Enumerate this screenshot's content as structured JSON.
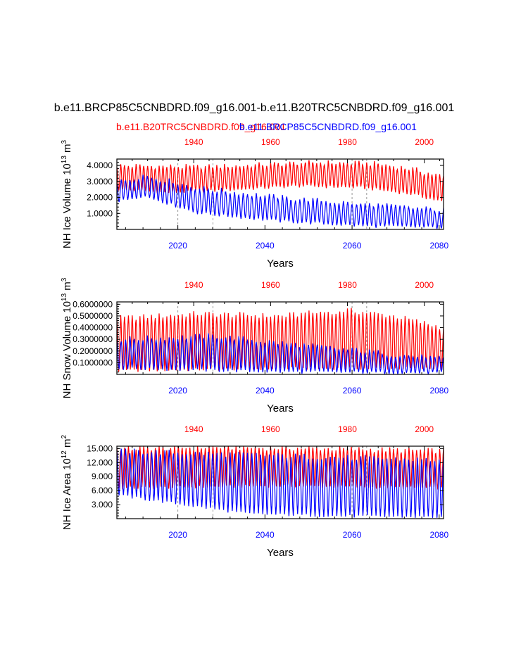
{
  "figure": {
    "title": "b.e11.BRCP85C5CNBDRD.f09_g16.001-b.e11.B20TRC5CNBDRD.f09_g16.001",
    "legend": [
      {
        "name": "b.e11.B20TRC5CNBDRD.f09_g16.001",
        "color": "#ff0000"
      },
      {
        "name": "b.e11.BRCP85C5CNBDRD.f09_g16.001",
        "color": "#0000ff"
      }
    ]
  },
  "chart_data": [
    {
      "type": "line",
      "xlabel": "Years",
      "ylabel_main": "NH Ice Volume 10",
      "ylabel_exp": "13",
      "ylabel_unit": "m",
      "ylabel_unit_exp": "3",
      "yticks": [
        "1.0000",
        "2.0000",
        "3.0000",
        "4.0000"
      ],
      "ytick_values": [
        1,
        2,
        3,
        4
      ],
      "ylim": [
        0,
        4.4
      ],
      "bottom_axis": {
        "label_years": [
          "2020",
          "2040",
          "2060",
          "2080"
        ],
        "range": [
          2006,
          2081
        ]
      },
      "top_axis": {
        "label_years": [
          "1940",
          "1960",
          "1980",
          "2000"
        ],
        "range": [
          1920,
          2005
        ]
      },
      "series": [
        {
          "name": "b.e11.B20TRC5CNBDRD.f09_g16.001",
          "color": "#ff0000",
          "cycles": 85,
          "max": [
            [
              0,
              4.0
            ],
            [
              0.25,
              3.9
            ],
            [
              0.4,
              4.0
            ],
            [
              0.6,
              4.2
            ],
            [
              0.8,
              4.1
            ],
            [
              0.9,
              3.8
            ],
            [
              1,
              3.3
            ]
          ],
          "min": [
            [
              0,
              2.5
            ],
            [
              0.15,
              2.3
            ],
            [
              0.3,
              2.4
            ],
            [
              0.55,
              2.7
            ],
            [
              0.75,
              2.6
            ],
            [
              0.9,
              2.2
            ],
            [
              1,
              1.7
            ]
          ]
        },
        {
          "name": "b.e11.BRCP85C5CNBDRD.f09_g16.001",
          "color": "#0000ff",
          "cycles": 75,
          "max": [
            [
              0,
              2.9
            ],
            [
              0.08,
              3.4
            ],
            [
              0.25,
              2.6
            ],
            [
              0.5,
              2.0
            ],
            [
              0.75,
              1.6
            ],
            [
              1,
              1.2
            ]
          ],
          "min": [
            [
              0,
              1.7
            ],
            [
              0.08,
              2.1
            ],
            [
              0.25,
              1.0
            ],
            [
              0.5,
              0.5
            ],
            [
              0.75,
              0.2
            ],
            [
              1,
              0.1
            ]
          ]
        }
      ]
    },
    {
      "type": "line",
      "xlabel": "Years",
      "ylabel_main": "NH Snow Volume 10",
      "ylabel_exp": "13",
      "ylabel_unit": "m",
      "ylabel_unit_exp": "3",
      "yticks": [
        "0.1000000",
        "0.2000000",
        "0.3000000",
        "0.4000000",
        "0.5000000",
        "0.6000000"
      ],
      "ytick_values": [
        0.1,
        0.2,
        0.3,
        0.4,
        0.5,
        0.6
      ],
      "ylim": [
        0,
        0.62
      ],
      "bottom_axis": {
        "label_years": [
          "2020",
          "2040",
          "2060",
          "2080"
        ],
        "range": [
          2006,
          2081
        ]
      },
      "top_axis": {
        "label_years": [
          "1940",
          "1960",
          "1980",
          "2000"
        ],
        "range": [
          1920,
          2005
        ]
      },
      "series": [
        {
          "name": "b.e11.B20TRC5CNBDRD.f09_g16.001",
          "color": "#ff0000",
          "cycles": 85,
          "max": [
            [
              0,
              0.48
            ],
            [
              0.25,
              0.52
            ],
            [
              0.5,
              0.5
            ],
            [
              0.7,
              0.55
            ],
            [
              0.85,
              0.5
            ],
            [
              1,
              0.4
            ]
          ],
          "min": [
            [
              0,
              0.03
            ],
            [
              0.5,
              0.05
            ],
            [
              1,
              0.05
            ]
          ]
        },
        {
          "name": "b.e11.BRCP85C5CNBDRD.f09_g16.001",
          "color": "#0000ff",
          "cycles": 75,
          "max": [
            [
              0,
              0.3
            ],
            [
              0.3,
              0.33
            ],
            [
              0.5,
              0.27
            ],
            [
              0.75,
              0.2
            ],
            [
              1,
              0.13
            ]
          ],
          "min": [
            [
              0,
              0.05
            ],
            [
              0.5,
              0.02
            ],
            [
              1,
              0.01
            ]
          ]
        }
      ]
    },
    {
      "type": "line",
      "xlabel": "Years",
      "ylabel_main": "NH Ice Area 10",
      "ylabel_exp": "12",
      "ylabel_unit": "m",
      "ylabel_unit_exp": "2",
      "yticks": [
        "3.000",
        "6.000",
        "9.000",
        "12.000",
        "15.000"
      ],
      "ytick_values": [
        3,
        6,
        9,
        12,
        15
      ],
      "ylim": [
        0,
        15.5
      ],
      "bottom_axis": {
        "label_years": [
          "2020",
          "2040",
          "2060",
          "2080"
        ],
        "range": [
          2006,
          2081
        ]
      },
      "top_axis": {
        "label_years": [
          "1940",
          "1960",
          "1980",
          "2000"
        ],
        "range": [
          1920,
          2005
        ]
      },
      "series": [
        {
          "name": "b.e11.B20TRC5CNBDRD.f09_g16.001",
          "color": "#ff0000",
          "cycles": 85,
          "max": [
            [
              0,
              15.0
            ],
            [
              0.3,
              15.3
            ],
            [
              0.6,
              15.1
            ],
            [
              1,
              14.5
            ]
          ],
          "min": [
            [
              0,
              6.5
            ],
            [
              0.5,
              7.0
            ],
            [
              1,
              6.5
            ]
          ]
        },
        {
          "name": "b.e11.BRCP85C5CNBDRD.f09_g16.001",
          "color": "#0000ff",
          "cycles": 75,
          "max": [
            [
              0,
              14.5
            ],
            [
              0.5,
              13.5
            ],
            [
              1,
              12.5
            ]
          ],
          "min": [
            [
              0,
              5.0
            ],
            [
              0.2,
              3.0
            ],
            [
              0.4,
              1.0
            ],
            [
              0.7,
              0.5
            ],
            [
              1,
              0.3
            ]
          ]
        }
      ]
    }
  ]
}
